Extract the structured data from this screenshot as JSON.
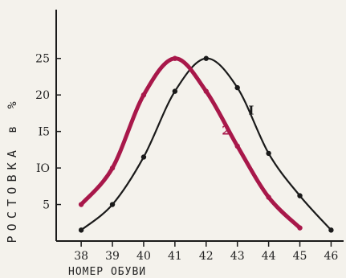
{
  "chart_data": {
    "type": "line",
    "xlabel": "НОМЕР ОБУВИ",
    "ylabel": "РОСТОВКА в %",
    "x": [
      38,
      39,
      40,
      41,
      42,
      43,
      44,
      45,
      46
    ],
    "x_tick_labels": [
      "38",
      "39",
      "40",
      "41",
      "42",
      "43",
      "44",
      "45",
      "46"
    ],
    "y_ticks": [
      5,
      10,
      15,
      20,
      25
    ],
    "y_tick_labels": [
      "5",
      "IO",
      "I5",
      "20",
      "25"
    ],
    "xlim": [
      37.2,
      46.4
    ],
    "ylim": [
      0,
      33
    ],
    "grid": false,
    "legend": "none",
    "series": [
      {
        "label": "I",
        "color": "#1a1a1a",
        "points": [
          [
            38,
            1.5
          ],
          [
            39,
            5
          ],
          [
            40,
            11.5
          ],
          [
            41,
            20.5
          ],
          [
            42,
            25
          ],
          [
            43,
            21
          ],
          [
            44,
            12
          ],
          [
            45,
            6.2
          ],
          [
            46,
            1.5
          ]
        ]
      },
      {
        "label": "2",
        "color": "#a8184a",
        "points": [
          [
            38,
            5
          ],
          [
            39,
            10
          ],
          [
            40,
            20
          ],
          [
            41,
            25
          ],
          [
            42,
            20.5
          ],
          [
            43,
            13
          ],
          [
            44,
            6
          ],
          [
            45,
            1.8
          ]
        ]
      }
    ]
  }
}
